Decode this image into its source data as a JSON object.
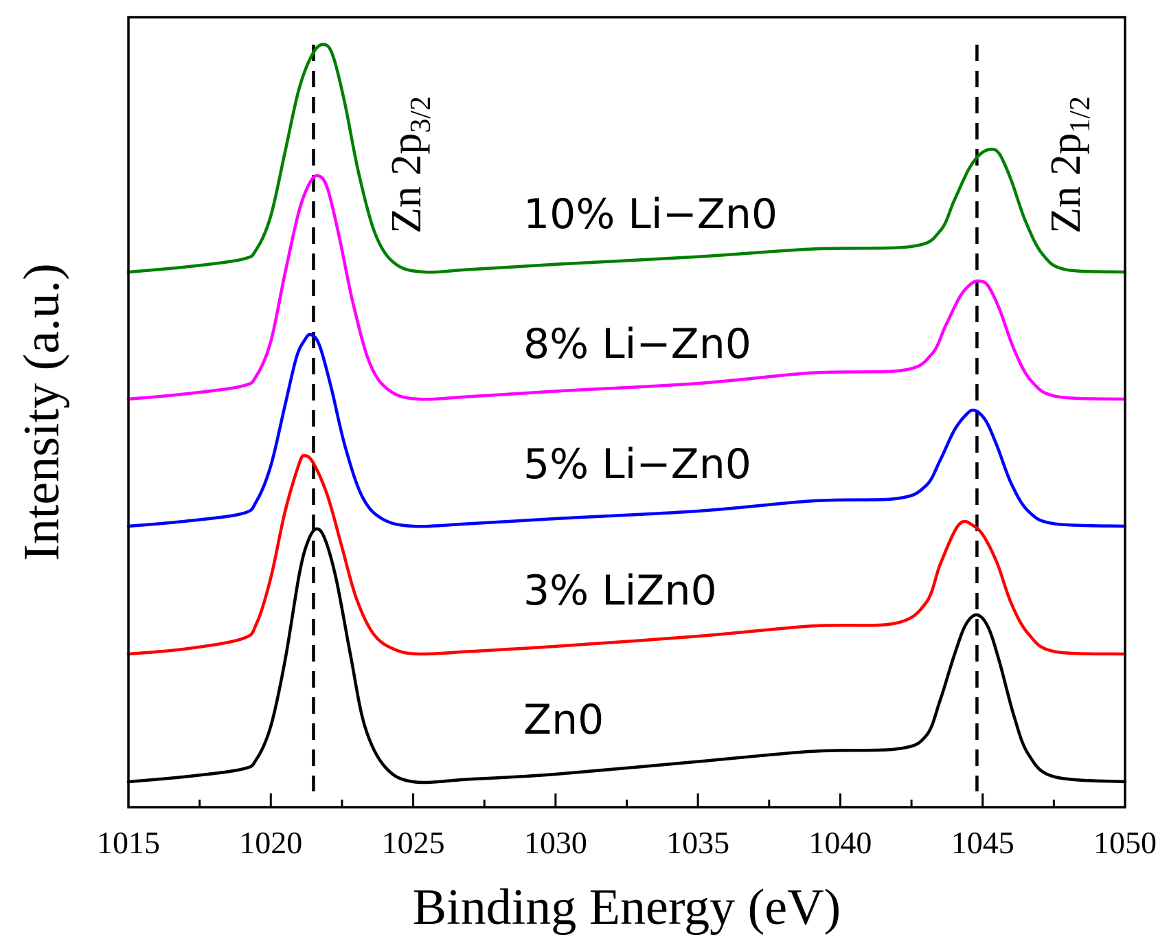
{
  "chart_data": {
    "type": "line",
    "title": "",
    "xlabel": "Binding Energy (eV)",
    "ylabel": "Intensity (a.u.)",
    "xlim": [
      1015,
      1050
    ],
    "x_major_ticks": [
      1015,
      1020,
      1025,
      1030,
      1035,
      1040,
      1045,
      1050
    ],
    "x_tick_labels": [
      "1015",
      "1020",
      "1025",
      "1030",
      "1035",
      "1040",
      "1045",
      "1050"
    ],
    "x_minor_step": 2.5,
    "y_tick_labels": false,
    "reference_lines": [
      {
        "x": 1021.5,
        "style": "dashed",
        "label_main": "Zn 2p",
        "label_sub": "3/2"
      },
      {
        "x": 1044.8,
        "style": "dashed",
        "label_main": "Zn 2p",
        "label_sub": "1/2"
      }
    ],
    "series": [
      {
        "name": "Zn0",
        "label": "Zn0",
        "color": "#000000",
        "offset": 0.0,
        "x": [
          1015,
          1017,
          1019,
          1019.5,
          1020,
          1020.5,
          1021,
          1021.3,
          1021.6,
          1021.9,
          1022.3,
          1022.8,
          1023.3,
          1024,
          1025,
          1027,
          1030,
          1035,
          1039,
          1042,
          1043,
          1043.5,
          1044,
          1044.4,
          1044.8,
          1045.2,
          1045.6,
          1046.1,
          1046.6,
          1047.5,
          1050
        ],
        "y": [
          0.0,
          0.02,
          0.05,
          0.09,
          0.22,
          0.48,
          0.82,
          0.95,
          1.0,
          0.96,
          0.8,
          0.5,
          0.22,
          0.06,
          0.0,
          0.01,
          0.03,
          0.08,
          0.12,
          0.13,
          0.18,
          0.32,
          0.5,
          0.62,
          0.66,
          0.61,
          0.47,
          0.26,
          0.11,
          0.02,
          0.0
        ]
      },
      {
        "name": "3% LiZn0",
        "label": "3% LiZn0",
        "color": "#ff0000",
        "offset": 0.0,
        "x": [
          1015,
          1017,
          1019,
          1019.5,
          1020,
          1020.5,
          1021,
          1021.2,
          1021.5,
          1022,
          1022.5,
          1023,
          1023.6,
          1024.3,
          1025.2,
          1027,
          1030,
          1035,
          1039,
          1041.9,
          1043,
          1043.5,
          1044,
          1044.3,
          1044.6,
          1045,
          1045.5,
          1046,
          1046.6,
          1047.5,
          1050
        ],
        "y": [
          0.0,
          0.02,
          0.06,
          0.12,
          0.3,
          0.56,
          0.75,
          0.78,
          0.75,
          0.62,
          0.42,
          0.22,
          0.08,
          0.02,
          0.0,
          0.01,
          0.03,
          0.07,
          0.11,
          0.12,
          0.2,
          0.35,
          0.48,
          0.52,
          0.51,
          0.47,
          0.36,
          0.2,
          0.08,
          0.01,
          0.0
        ]
      },
      {
        "name": "5% Li-Zn0",
        "label": "5% Li−Zn0",
        "color": "#0000ff",
        "offset": 0.0,
        "x": [
          1015,
          1017,
          1019,
          1019.5,
          1020,
          1020.5,
          1020.9,
          1021.2,
          1021.4,
          1021.7,
          1022.1,
          1022.6,
          1023.2,
          1023.9,
          1025,
          1027,
          1030,
          1035,
          1039,
          1042,
          1043,
          1043.5,
          1044,
          1044.4,
          1044.7,
          1045.1,
          1045.5,
          1046,
          1046.6,
          1047.5,
          1050
        ],
        "y": [
          0.0,
          0.02,
          0.05,
          0.1,
          0.24,
          0.48,
          0.67,
          0.74,
          0.76,
          0.72,
          0.56,
          0.32,
          0.12,
          0.03,
          0.0,
          0.01,
          0.03,
          0.06,
          0.1,
          0.11,
          0.16,
          0.26,
          0.38,
          0.44,
          0.46,
          0.42,
          0.32,
          0.17,
          0.06,
          0.01,
          0.0
        ]
      },
      {
        "name": "8% Li-Zn0",
        "label": "8% Li−Zn0",
        "color": "#ff00ff",
        "offset": 0.0,
        "x": [
          1015,
          1017,
          1019,
          1019.5,
          1020,
          1020.5,
          1021,
          1021.4,
          1021.7,
          1022,
          1022.4,
          1022.9,
          1023.5,
          1024.2,
          1025.2,
          1027,
          1030,
          1035,
          1039,
          1042.2,
          1043.2,
          1043.7,
          1044.2,
          1044.6,
          1044.9,
          1045.2,
          1045.6,
          1046.1,
          1046.7,
          1047.6,
          1050
        ],
        "y": [
          0.0,
          0.02,
          0.05,
          0.09,
          0.22,
          0.48,
          0.72,
          0.83,
          0.85,
          0.8,
          0.62,
          0.36,
          0.13,
          0.03,
          0.0,
          0.01,
          0.03,
          0.06,
          0.1,
          0.11,
          0.17,
          0.28,
          0.39,
          0.44,
          0.45,
          0.43,
          0.34,
          0.19,
          0.07,
          0.01,
          0.0
        ]
      },
      {
        "name": "10% Li-Zn0",
        "label": "10% Li−Zn0",
        "color": "#008000",
        "offset": 0.0,
        "x": [
          1015,
          1017,
          1019,
          1019.5,
          1020,
          1020.5,
          1021,
          1021.5,
          1021.9,
          1022.2,
          1022.6,
          1023.1,
          1023.7,
          1024.4,
          1025.4,
          1027,
          1030,
          1035,
          1039,
          1042.5,
          1043.5,
          1044,
          1044.5,
          1044.9,
          1045.3,
          1045.6,
          1046,
          1046.5,
          1047.1,
          1047.9,
          1050
        ],
        "y": [
          0.0,
          0.02,
          0.05,
          0.09,
          0.22,
          0.47,
          0.72,
          0.86,
          0.89,
          0.84,
          0.66,
          0.38,
          0.14,
          0.03,
          0.0,
          0.01,
          0.03,
          0.06,
          0.09,
          0.1,
          0.16,
          0.28,
          0.4,
          0.46,
          0.48,
          0.46,
          0.36,
          0.2,
          0.07,
          0.01,
          0.0
        ]
      }
    ]
  }
}
